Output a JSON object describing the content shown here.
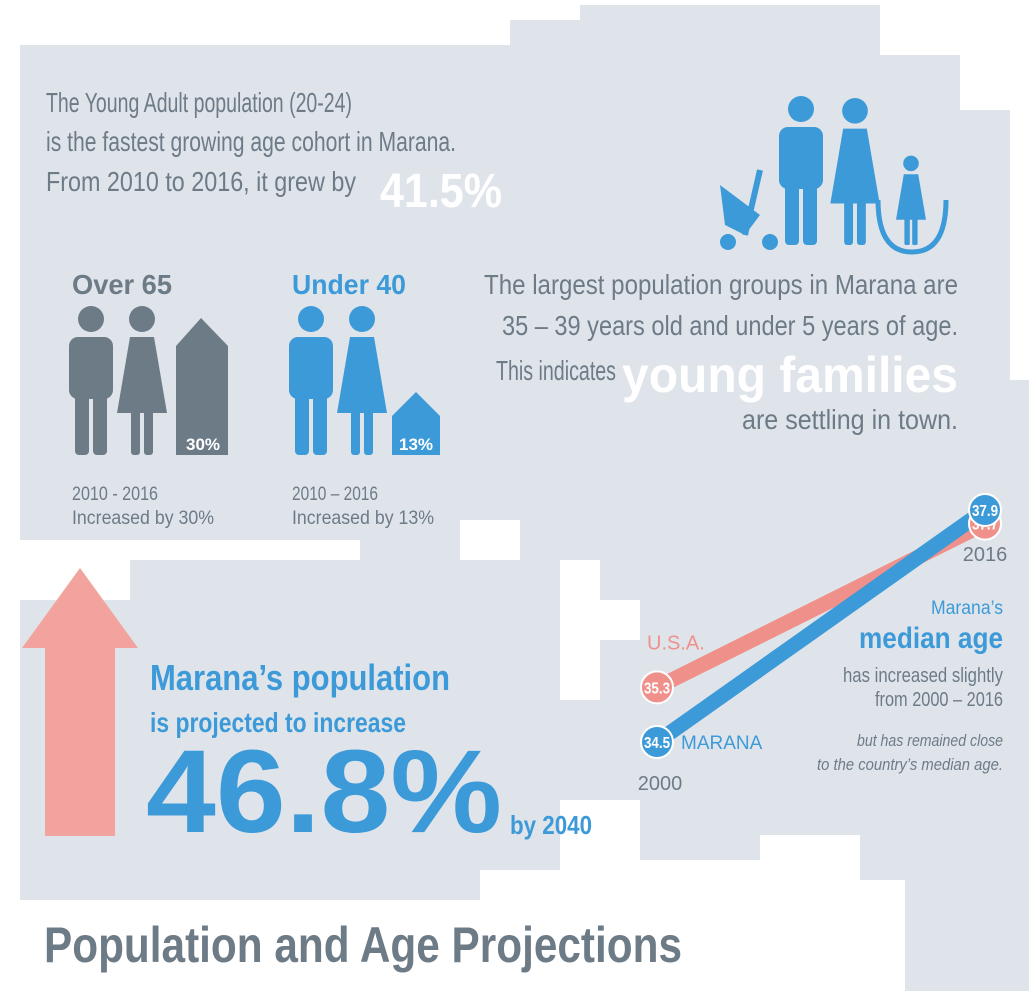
{
  "intro": {
    "line1": "The Young Adult population (20-24)",
    "line2": "is the fastest growing age cohort in Marana.",
    "line3": "From 2010 to 2016, it grew by",
    "highlight": "41.5%"
  },
  "groups": [
    {
      "title": "Over 65",
      "badge": "30%",
      "period": "2010 - 2016",
      "note": "Increased by 30%"
    },
    {
      "title": "Under 40",
      "badge": "13%",
      "period": "2010 – 2016",
      "note": "Increased by 13%"
    }
  ],
  "families": {
    "line1": "The largest population groups in Marana are",
    "line2": "35 – 39 years old and under 5 years of age.",
    "line3": "This indicates",
    "highlight": "young families",
    "line4": "are settling in town."
  },
  "projection": {
    "line1": "Marana’s population",
    "line2": "is projected to increase",
    "value": "46.8%",
    "suffix": "by 2040"
  },
  "chart_data": {
    "type": "line",
    "x": [
      "2000",
      "2016"
    ],
    "series": [
      {
        "name": "U.S.A.",
        "color": "#f0908a",
        "values": [
          35.3,
          37.7
        ]
      },
      {
        "name": "MARANA",
        "color": "#3d9ad8",
        "values": [
          34.5,
          37.9
        ]
      }
    ]
  },
  "median": {
    "line1": "Marana’s",
    "line2": "median age",
    "line3": "has increased slightly",
    "line4": "from 2000 – 2016",
    "note1": "but has remained close",
    "note2": "to the country’s median age."
  },
  "title": "Population and Age Projections"
}
